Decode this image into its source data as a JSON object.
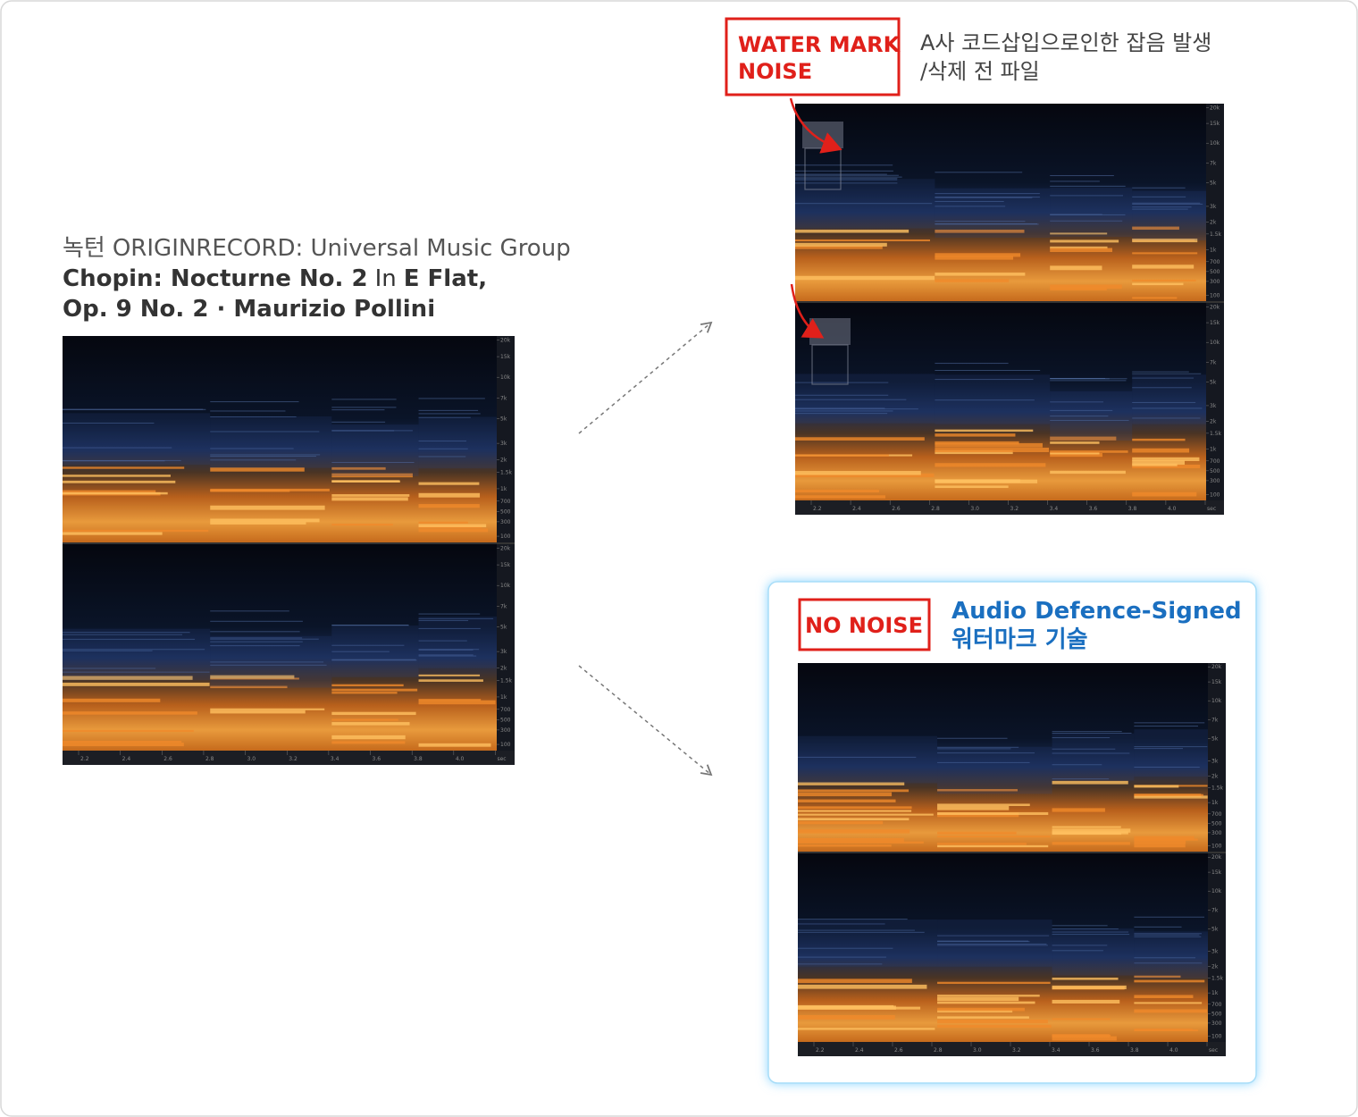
{
  "original": {
    "prefix": "녹턴",
    "source": "ORIGINRECORD: Universal Music Group",
    "title": [
      "Chopin: Nocturne No. 2",
      "In",
      "E Flat,"
    ],
    "title_line2": "Op. 9 No. 2 · Maurizio Pollini"
  },
  "watermark": {
    "badge": [
      "WATER MARK",
      "NOISE"
    ],
    "caption": [
      "A사 코드삽입으로인한 잡음 발생",
      "/삭제 전 파일"
    ]
  },
  "signed": {
    "badge": "NO NOISE",
    "caption": [
      "Audio Defence-Signed",
      "워터마크 기술"
    ]
  },
  "spectrogram_axis": {
    "frequency": [
      "20k",
      "15k",
      "10k",
      "7k",
      "5k",
      "3k",
      "2k",
      "1.5k",
      "1k",
      "700",
      "500",
      "300",
      "100"
    ],
    "time": [
      "2.2",
      "2.4",
      "2.6",
      "2.8",
      "3.0",
      "3.2",
      "3.4",
      "3.6",
      "3.8",
      "4.0",
      "sec"
    ]
  }
}
